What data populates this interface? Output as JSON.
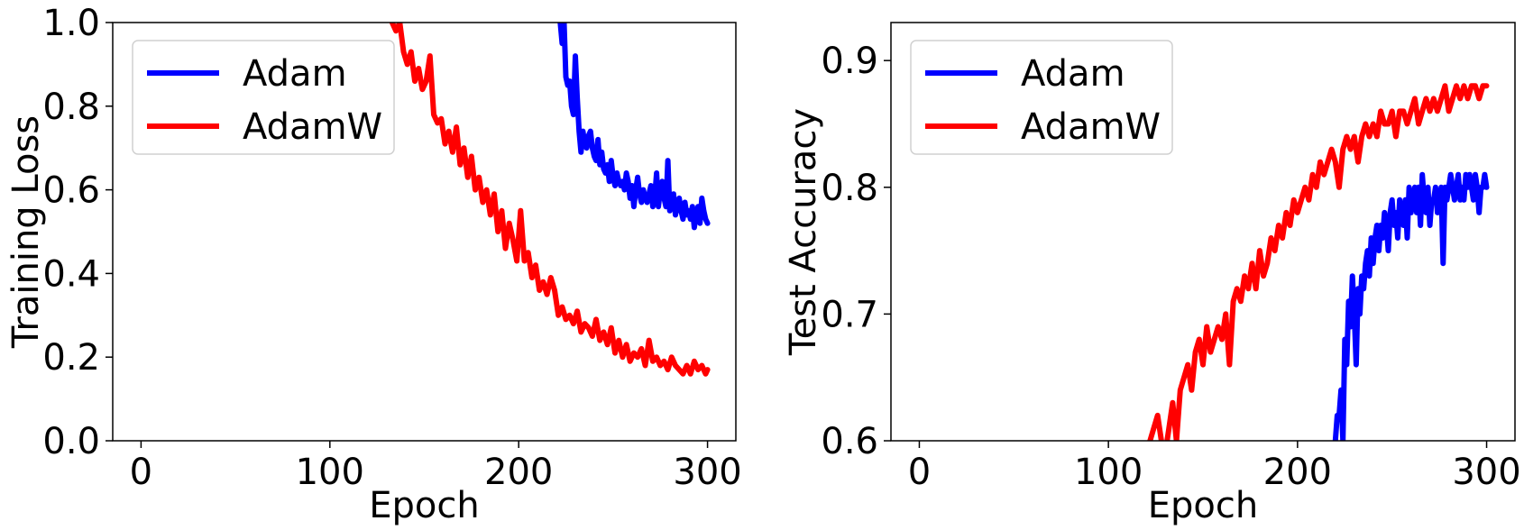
{
  "chart_data": [
    {
      "type": "line",
      "title": "",
      "xlabel": "Epoch",
      "ylabel": "Training Loss",
      "xlim": [
        -15,
        315
      ],
      "ylim": [
        0.0,
        1.0
      ],
      "xticks": [
        "0",
        "100",
        "200",
        "300"
      ],
      "yticks": [
        "0.0",
        "0.2",
        "0.4",
        "0.6",
        "0.8",
        "1.0"
      ],
      "legend": "upper-left",
      "grid": false,
      "series": [
        {
          "name": "Adam",
          "color": "#0000ff",
          "x": [
            222,
            223,
            224,
            225,
            226,
            227,
            228,
            229,
            230,
            231,
            232,
            233,
            234,
            235,
            236,
            237,
            238,
            239,
            240,
            241,
            242,
            243,
            244,
            245,
            246,
            247,
            248,
            249,
            250,
            251,
            252,
            253,
            254,
            255,
            256,
            257,
            258,
            259,
            260,
            261,
            262,
            263,
            264,
            265,
            266,
            267,
            268,
            269,
            270,
            271,
            272,
            273,
            274,
            275,
            276,
            277,
            278,
            279,
            280,
            281,
            282,
            283,
            284,
            285,
            286,
            287,
            288,
            289,
            290,
            291,
            292,
            293,
            294,
            295,
            296,
            297,
            298,
            299,
            300
          ],
          "y": [
            1.0,
            0.95,
            1.0,
            0.87,
            0.85,
            0.86,
            0.8,
            0.78,
            0.92,
            0.82,
            0.74,
            0.69,
            0.74,
            0.71,
            0.7,
            0.73,
            0.74,
            0.7,
            0.68,
            0.67,
            0.72,
            0.66,
            0.69,
            0.65,
            0.64,
            0.66,
            0.62,
            0.67,
            0.63,
            0.61,
            0.64,
            0.62,
            0.61,
            0.62,
            0.6,
            0.64,
            0.62,
            0.58,
            0.61,
            0.56,
            0.6,
            0.63,
            0.59,
            0.57,
            0.6,
            0.58,
            0.57,
            0.59,
            0.61,
            0.56,
            0.58,
            0.64,
            0.56,
            0.6,
            0.62,
            0.58,
            0.56,
            0.67,
            0.55,
            0.57,
            0.59,
            0.54,
            0.56,
            0.58,
            0.55,
            0.53,
            0.57,
            0.54,
            0.55,
            0.53,
            0.56,
            0.51,
            0.54,
            0.56,
            0.52,
            0.58,
            0.55,
            0.53,
            0.52
          ]
        },
        {
          "name": "AdamW",
          "color": "#ff0000",
          "x": [
            133,
            135,
            137,
            139,
            141,
            143,
            145,
            147,
            149,
            151,
            153,
            155,
            157,
            159,
            161,
            163,
            165,
            167,
            169,
            171,
            173,
            175,
            177,
            179,
            181,
            183,
            185,
            187,
            189,
            191,
            193,
            195,
            197,
            199,
            201,
            203,
            205,
            207,
            209,
            211,
            213,
            215,
            217,
            219,
            221,
            223,
            225,
            227,
            229,
            231,
            233,
            235,
            237,
            239,
            241,
            243,
            245,
            247,
            249,
            251,
            253,
            255,
            257,
            259,
            261,
            263,
            265,
            267,
            269,
            271,
            273,
            275,
            277,
            279,
            281,
            283,
            285,
            287,
            289,
            291,
            293,
            295,
            297,
            299,
            300
          ],
          "y": [
            1.0,
            0.98,
            1.0,
            0.93,
            0.9,
            0.93,
            0.86,
            0.89,
            0.84,
            0.86,
            0.92,
            0.78,
            0.76,
            0.77,
            0.71,
            0.74,
            0.69,
            0.75,
            0.66,
            0.7,
            0.63,
            0.68,
            0.6,
            0.63,
            0.57,
            0.6,
            0.54,
            0.59,
            0.5,
            0.55,
            0.46,
            0.52,
            0.48,
            0.43,
            0.55,
            0.43,
            0.45,
            0.39,
            0.42,
            0.36,
            0.38,
            0.35,
            0.39,
            0.36,
            0.3,
            0.32,
            0.29,
            0.3,
            0.28,
            0.31,
            0.26,
            0.28,
            0.27,
            0.25,
            0.29,
            0.24,
            0.26,
            0.23,
            0.27,
            0.21,
            0.24,
            0.2,
            0.23,
            0.19,
            0.21,
            0.2,
            0.22,
            0.18,
            0.24,
            0.19,
            0.2,
            0.18,
            0.19,
            0.17,
            0.2,
            0.18,
            0.17,
            0.16,
            0.18,
            0.16,
            0.19,
            0.17,
            0.18,
            0.16,
            0.17
          ]
        }
      ]
    },
    {
      "type": "line",
      "title": "",
      "xlabel": "Epoch",
      "ylabel": "Test Accuracy",
      "xlim": [
        -15,
        315
      ],
      "ylim": [
        0.6,
        0.93
      ],
      "xticks": [
        "0",
        "100",
        "200",
        "300"
      ],
      "yticks": [
        "0.6",
        "0.7",
        "0.8",
        "0.9"
      ],
      "legend": "upper-left",
      "grid": false,
      "series": [
        {
          "name": "Adam",
          "color": "#0000ff",
          "x": [
            220,
            221,
            222,
            223,
            224,
            225,
            226,
            227,
            228,
            229,
            230,
            231,
            232,
            233,
            234,
            235,
            236,
            237,
            238,
            239,
            240,
            241,
            242,
            243,
            244,
            245,
            246,
            247,
            248,
            249,
            250,
            251,
            252,
            253,
            254,
            255,
            256,
            257,
            258,
            259,
            260,
            261,
            262,
            263,
            264,
            265,
            266,
            267,
            268,
            269,
            270,
            271,
            272,
            273,
            274,
            275,
            276,
            277,
            278,
            279,
            280,
            281,
            282,
            283,
            284,
            285,
            286,
            287,
            288,
            289,
            290,
            291,
            292,
            293,
            294,
            295,
            296,
            297,
            298,
            299,
            300
          ],
          "y": [
            0.6,
            0.62,
            0.62,
            0.64,
            0.6,
            0.68,
            0.66,
            0.71,
            0.69,
            0.73,
            0.7,
            0.66,
            0.72,
            0.7,
            0.73,
            0.72,
            0.74,
            0.75,
            0.73,
            0.76,
            0.74,
            0.76,
            0.77,
            0.75,
            0.77,
            0.76,
            0.78,
            0.77,
            0.75,
            0.78,
            0.79,
            0.77,
            0.78,
            0.76,
            0.79,
            0.78,
            0.77,
            0.79,
            0.76,
            0.8,
            0.78,
            0.79,
            0.8,
            0.78,
            0.8,
            0.77,
            0.81,
            0.79,
            0.78,
            0.8,
            0.77,
            0.79,
            0.79,
            0.8,
            0.78,
            0.79,
            0.8,
            0.74,
            0.8,
            0.79,
            0.8,
            0.81,
            0.8,
            0.79,
            0.8,
            0.81,
            0.79,
            0.8,
            0.79,
            0.81,
            0.8,
            0.81,
            0.8,
            0.79,
            0.81,
            0.8,
            0.78,
            0.8,
            0.8,
            0.81,
            0.8
          ]
        },
        {
          "name": "AdamW",
          "color": "#ff0000",
          "x": [
            122,
            124,
            126,
            128,
            130,
            132,
            134,
            136,
            138,
            140,
            142,
            144,
            146,
            148,
            150,
            152,
            154,
            156,
            158,
            160,
            162,
            164,
            166,
            168,
            170,
            172,
            174,
            176,
            178,
            180,
            182,
            184,
            186,
            188,
            190,
            192,
            194,
            196,
            198,
            200,
            202,
            204,
            206,
            208,
            210,
            212,
            214,
            216,
            218,
            220,
            222,
            224,
            226,
            228,
            230,
            232,
            234,
            236,
            238,
            240,
            242,
            244,
            246,
            248,
            250,
            252,
            254,
            256,
            258,
            260,
            262,
            264,
            266,
            268,
            270,
            272,
            274,
            276,
            278,
            280,
            282,
            284,
            286,
            288,
            290,
            292,
            294,
            296,
            298,
            300
          ],
          "y": [
            0.6,
            0.61,
            0.62,
            0.6,
            0.59,
            0.61,
            0.63,
            0.6,
            0.64,
            0.65,
            0.66,
            0.64,
            0.67,
            0.68,
            0.66,
            0.69,
            0.67,
            0.68,
            0.69,
            0.68,
            0.7,
            0.66,
            0.71,
            0.72,
            0.71,
            0.73,
            0.72,
            0.74,
            0.72,
            0.75,
            0.73,
            0.74,
            0.76,
            0.75,
            0.77,
            0.76,
            0.78,
            0.77,
            0.79,
            0.78,
            0.79,
            0.8,
            0.79,
            0.81,
            0.8,
            0.82,
            0.81,
            0.82,
            0.83,
            0.82,
            0.8,
            0.83,
            0.84,
            0.83,
            0.84,
            0.82,
            0.84,
            0.85,
            0.84,
            0.85,
            0.84,
            0.86,
            0.85,
            0.85,
            0.86,
            0.84,
            0.86,
            0.86,
            0.85,
            0.86,
            0.87,
            0.85,
            0.86,
            0.87,
            0.86,
            0.87,
            0.86,
            0.87,
            0.88,
            0.86,
            0.87,
            0.88,
            0.87,
            0.88,
            0.87,
            0.88,
            0.88,
            0.87,
            0.88,
            0.88
          ]
        }
      ]
    }
  ]
}
